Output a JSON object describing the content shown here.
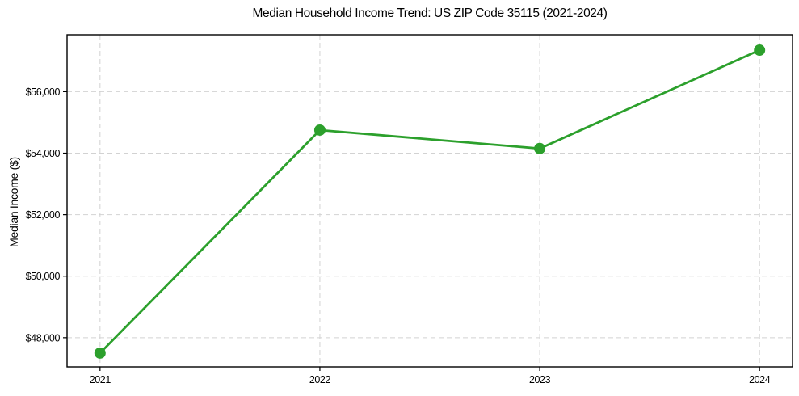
{
  "chart_data": {
    "type": "line",
    "title": "Median Household Income Trend: US ZIP Code 35115 (2021-2024)",
    "xlabel": "",
    "ylabel": "Median Income ($)",
    "categories": [
      "2021",
      "2022",
      "2023",
      "2024"
    ],
    "values": [
      47500,
      54750,
      54150,
      57350
    ],
    "ylim": [
      47050,
      57850
    ],
    "yticks": [
      48000,
      50000,
      52000,
      54000,
      56000
    ],
    "ytick_labels": [
      "$48,000",
      "$50,000",
      "$52,000",
      "$54,000",
      "$56,000"
    ],
    "grid": true,
    "grid_line_style": "dashed",
    "legend": false,
    "legend_position": "none",
    "line_color": "#2ca02c",
    "marker": "circle",
    "marker_color": "#2ca02c",
    "grid_color": "#d2d2d2",
    "axis_color": "#000000",
    "text_color": "#000000",
    "background": "#ffffff"
  }
}
